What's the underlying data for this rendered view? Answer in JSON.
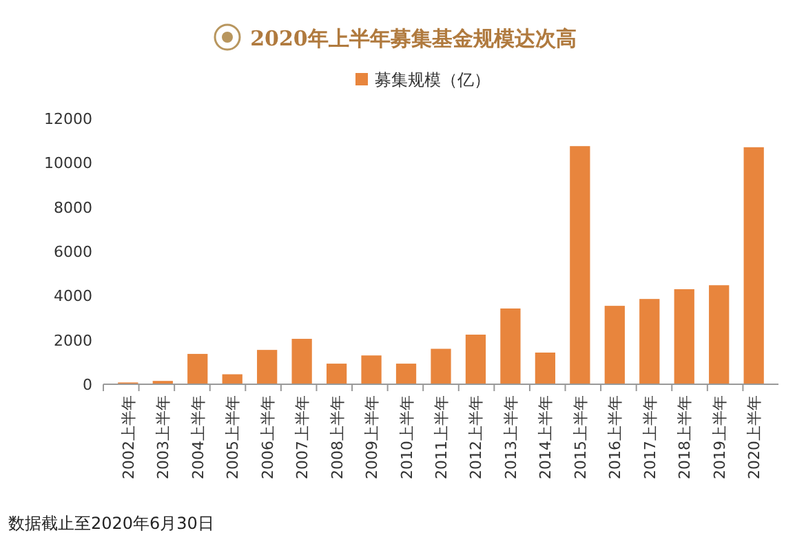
{
  "chart_data": {
    "type": "bar",
    "title": "2020年上半年募集基金规模达次高",
    "categories": [
      "2002上半年",
      "2003上半年",
      "2004上半年",
      "2005上半年",
      "2006上半年",
      "2007上半年",
      "2008上半年",
      "2009上半年",
      "2010上半年",
      "2011上半年",
      "2012上半年",
      "2013上半年",
      "2014上半年",
      "2015上半年",
      "2016上半年",
      "2017上半年",
      "2018上半年",
      "2019上半年",
      "2020上半年"
    ],
    "series": [
      {
        "name": "募集规模（亿）",
        "color": "#e8853d",
        "values": [
          80,
          150,
          1370,
          450,
          1550,
          2050,
          930,
          1300,
          930,
          1600,
          2240,
          3420,
          1430,
          10750,
          3540,
          3850,
          4290,
          4470,
          10700
        ]
      }
    ],
    "ylim": [
      0,
      12000
    ],
    "yticks": [
      0,
      2000,
      4000,
      6000,
      8000,
      10000,
      12000
    ],
    "grid": false,
    "legend": "top",
    "annotations": [
      "数据截止至2020年6月30日"
    ]
  }
}
